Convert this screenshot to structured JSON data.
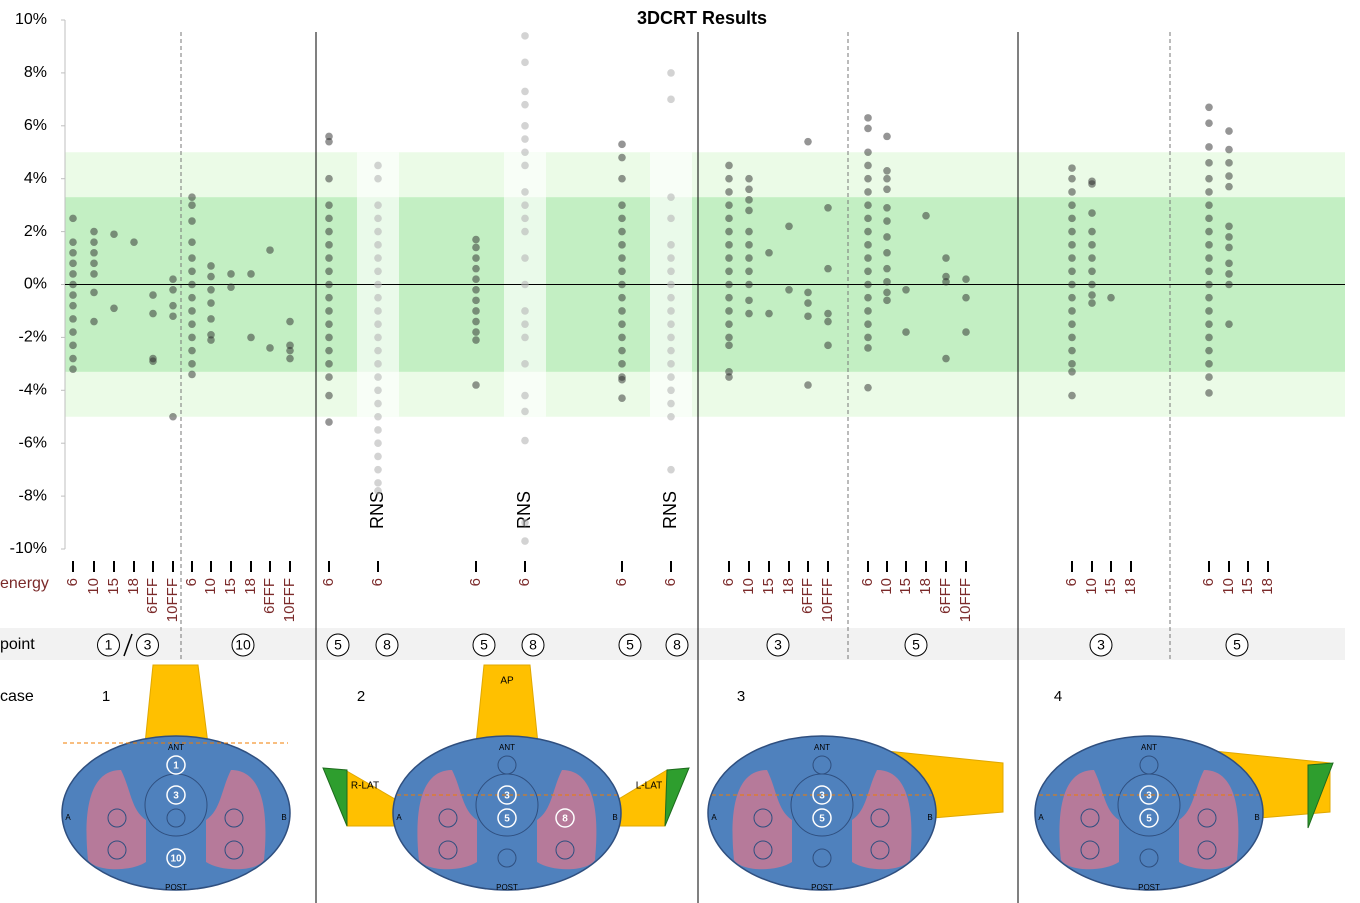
{
  "chart_data": {
    "type": "strip",
    "title": "3DCRT Results",
    "ylim": [
      -10,
      10
    ],
    "yticks": [
      {
        "value": 10,
        "label": "10%"
      },
      {
        "value": 8,
        "label": "8%"
      },
      {
        "value": 6,
        "label": "6%"
      },
      {
        "value": 4,
        "label": "4%"
      },
      {
        "value": 2,
        "label": "2%"
      },
      {
        "value": 0,
        "label": "0%"
      },
      {
        "value": -2,
        "label": "-2%"
      },
      {
        "value": -4,
        "label": "-4%"
      },
      {
        "value": -6,
        "label": "-6%"
      },
      {
        "value": -8,
        "label": "-8%"
      },
      {
        "value": -10,
        "label": "-10%"
      }
    ],
    "bands": [
      {
        "range": [
          -5,
          5
        ],
        "color": "#ebfbe7"
      },
      {
        "range": [
          -3.3,
          3.3
        ],
        "color": "#c3efc3"
      }
    ],
    "dot_color": "#2b2b2b",
    "faded_color": "#b5b5b5",
    "row_labels": {
      "energy": "energy",
      "point": "point",
      "case": "case"
    },
    "diagram_text": {
      "ant": "ANT",
      "post": "POST",
      "a": "A",
      "b": "B",
      "ap": "AP",
      "rlat": "R-LAT",
      "llat": "L-LAT"
    },
    "groups": [
      {
        "case": "1",
        "markers": [
          "1",
          "3",
          "10"
        ],
        "points": [
          {
            "labels": [
              "1",
              "3"
            ],
            "columns": [
              {
                "energy": "6",
                "values": [
                  2.5,
                  1.6,
                  1.2,
                  0.8,
                  0.4,
                  0,
                  -0.4,
                  -0.8,
                  -1.3,
                  -1.8,
                  -2.3,
                  -2.8,
                  -3.2
                ]
              },
              {
                "energy": "10",
                "values": [
                  2,
                  1.6,
                  1.2,
                  0.8,
                  0.4,
                  -0.3,
                  -1.4
                ]
              },
              {
                "energy": "15",
                "values": [
                  1.9,
                  -0.9
                ]
              },
              {
                "energy": "18",
                "values": [
                  1.6
                ]
              },
              {
                "energy": "6FFF",
                "values": [
                  -0.4,
                  -1.1,
                  -2.8,
                  -2.9
                ]
              },
              {
                "energy": "10FFF",
                "values": [
                  0.2,
                  -0.2,
                  -0.8,
                  -1.2,
                  -5
                ]
              }
            ]
          },
          {
            "labels": [
              "10"
            ],
            "columns": [
              {
                "energy": "6",
                "values": [
                  3.3,
                  3,
                  2.4,
                  1.6,
                  1,
                  0.5,
                  0,
                  -0.5,
                  -1,
                  -1.5,
                  -2,
                  -2.5,
                  -3,
                  -3.4
                ]
              },
              {
                "energy": "10",
                "values": [
                  0.7,
                  0.3,
                  -0.2,
                  -0.7,
                  -1.3,
                  -1.9,
                  -2.1
                ]
              },
              {
                "energy": "15",
                "values": [
                  0.4,
                  -0.1
                ]
              },
              {
                "energy": "18",
                "values": [
                  0.4,
                  -2
                ]
              },
              {
                "energy": "6FFF",
                "values": [
                  1.3,
                  -2.4
                ]
              },
              {
                "energy": "10FFF",
                "values": [
                  -1.4,
                  -2.3,
                  -2.5,
                  -2.8
                ]
              }
            ]
          }
        ]
      },
      {
        "case": "2",
        "markers": [
          "3",
          "5",
          "8"
        ],
        "points": [
          {
            "labels": [
              "5"
            ],
            "columns": [
              {
                "energy": "6",
                "values": [
                  5.6,
                  5.4,
                  4,
                  3,
                  2.5,
                  2,
                  1.5,
                  1,
                  0.5,
                  0,
                  -0.5,
                  -1,
                  -1.5,
                  -2,
                  -2.5,
                  -3,
                  -3.5,
                  -4.2,
                  -5.2
                ]
              }
            ]
          },
          {
            "labels": [
              "8"
            ],
            "columns": [
              {
                "energy": "6",
                "label": "RNS",
                "values": [
                  4.5,
                  4,
                  3,
                  2.5,
                  2,
                  1.5,
                  1,
                  0.5,
                  0,
                  -0.5,
                  -1,
                  -1.5,
                  -2,
                  -2.5,
                  -3,
                  -3.5,
                  -4,
                  -4.5,
                  -5,
                  -5.5,
                  -6,
                  -6.5,
                  -7,
                  -7.5,
                  -7.8
                ]
              }
            ]
          },
          {
            "labels": [
              "5"
            ],
            "columns": [
              {
                "energy": "6",
                "values": [
                  1.7,
                  1.4,
                  1,
                  0.6,
                  0.2,
                  -0.2,
                  -0.6,
                  -1,
                  -1.4,
                  -1.8,
                  -2.1,
                  -3.8
                ]
              }
            ]
          },
          {
            "labels": [
              "8"
            ],
            "columns": [
              {
                "energy": "6",
                "label": "RNS",
                "values": [
                  9.4,
                  8.4,
                  7.3,
                  6.8,
                  6,
                  5.5,
                  5,
                  4.5,
                  3.5,
                  3,
                  2.5,
                  2,
                  1,
                  0,
                  -1,
                  -1.5,
                  -2,
                  -3,
                  -4.2,
                  -4.8,
                  -5.9,
                  -9,
                  -9.7
                ]
              }
            ]
          },
          {
            "labels": [
              "5"
            ],
            "columns": [
              {
                "energy": "6",
                "values": [
                  5.3,
                  4.8,
                  4,
                  3,
                  2.5,
                  2,
                  1.5,
                  1,
                  0.5,
                  0,
                  -0.5,
                  -1,
                  -1.5,
                  -2,
                  -2.5,
                  -3,
                  -3.5,
                  -3.6,
                  -4.3
                ]
              }
            ]
          },
          {
            "labels": [
              "8"
            ],
            "columns": [
              {
                "energy": "6",
                "label": "RNS",
                "values": [
                  8,
                  7,
                  3.3,
                  2.5,
                  1.5,
                  1,
                  0.5,
                  0,
                  -0.5,
                  -1,
                  -1.5,
                  -2,
                  -2.5,
                  -3,
                  -3.5,
                  -4,
                  -4.5,
                  -5,
                  -7
                ]
              }
            ]
          }
        ]
      },
      {
        "case": "3",
        "markers": [
          "3",
          "5"
        ],
        "points": [
          {
            "labels": [
              "3"
            ],
            "columns": [
              {
                "energy": "6",
                "values": [
                  4.5,
                  4,
                  3.5,
                  3,
                  2.5,
                  2,
                  1.5,
                  1,
                  0.5,
                  0,
                  -0.5,
                  -1,
                  -1.5,
                  -2,
                  -2.3,
                  -3.3,
                  -3.5
                ]
              },
              {
                "energy": "10",
                "values": [
                  4,
                  3.6,
                  3.2,
                  2.8,
                  2,
                  1.5,
                  1,
                  0.5,
                  0,
                  -0.6,
                  -1.1
                ]
              },
              {
                "energy": "15",
                "values": [
                  1.2,
                  -1.1
                ]
              },
              {
                "energy": "18",
                "values": [
                  2.2,
                  -0.2
                ]
              },
              {
                "energy": "6FFF",
                "values": [
                  5.4,
                  -0.3,
                  -0.7,
                  -1.2,
                  -3.8
                ]
              },
              {
                "energy": "10FFF",
                "values": [
                  2.9,
                  0.6,
                  -1.1,
                  -1.4,
                  -2.3
                ]
              }
            ]
          },
          {
            "labels": [
              "5"
            ],
            "columns": [
              {
                "energy": "6",
                "values": [
                  6.3,
                  5.9,
                  5,
                  4.5,
                  4,
                  3.5,
                  3,
                  2.5,
                  2,
                  1.5,
                  1,
                  0.5,
                  0,
                  -0.5,
                  -1,
                  -1.5,
                  -2,
                  -2.4,
                  -3.9
                ]
              },
              {
                "energy": "10",
                "values": [
                  5.6,
                  4.3,
                  4,
                  3.6,
                  2.9,
                  2.4,
                  1.8,
                  1.2,
                  0.6,
                  0.1,
                  -0.3,
                  -0.6
                ]
              },
              {
                "energy": "15",
                "values": [
                  -0.2,
                  -1.8
                ]
              },
              {
                "energy": "18",
                "values": [
                  2.6
                ]
              },
              {
                "energy": "6FFF",
                "values": [
                  1,
                  0.3,
                  0.1,
                  -2.8
                ]
              },
              {
                "energy": "10FFF",
                "values": [
                  0.2,
                  -0.5,
                  -1.8
                ]
              }
            ]
          }
        ]
      },
      {
        "case": "4",
        "markers": [
          "3",
          "5"
        ],
        "points": [
          {
            "labels": [
              "3"
            ],
            "columns": [
              {
                "energy": "6",
                "values": [
                  4.4,
                  4,
                  3.5,
                  3,
                  2.5,
                  2,
                  1.5,
                  1,
                  0.5,
                  0,
                  -0.5,
                  -1,
                  -1.5,
                  -2,
                  -2.5,
                  -3,
                  -3.3,
                  -4.2
                ]
              },
              {
                "energy": "10",
                "values": [
                  3.9,
                  3.8,
                  2.7,
                  2,
                  1.5,
                  1,
                  0.5,
                  0,
                  -0.4,
                  -0.7
                ]
              },
              {
                "energy": "15",
                "values": [
                  -0.5
                ]
              },
              {
                "energy": "18",
                "values": []
              }
            ]
          },
          {
            "labels": [
              "5"
            ],
            "columns": [
              {
                "energy": "6",
                "values": [
                  6.7,
                  6.1,
                  5.2,
                  4.6,
                  4,
                  3.5,
                  3,
                  2.5,
                  2,
                  1.5,
                  1,
                  0.5,
                  0,
                  -0.5,
                  -1,
                  -1.5,
                  -2,
                  -2.5,
                  -3,
                  -3.5,
                  -4.1
                ]
              },
              {
                "energy": "10",
                "values": [
                  5.8,
                  5.1,
                  4.6,
                  4.1,
                  3.7,
                  2.2,
                  1.8,
                  1.4,
                  0.8,
                  0.4,
                  0,
                  -1.5
                ]
              },
              {
                "energy": "15",
                "values": []
              },
              {
                "energy": "18",
                "values": []
              }
            ]
          }
        ]
      }
    ]
  }
}
